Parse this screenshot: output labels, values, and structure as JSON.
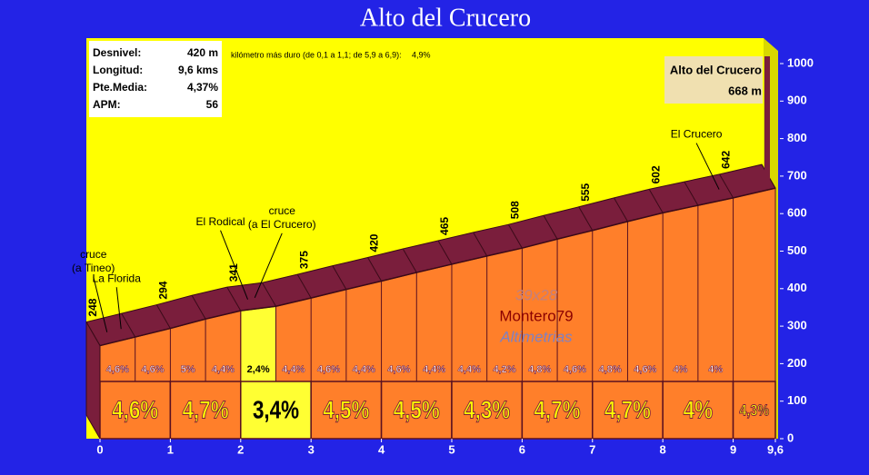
{
  "chart_data": {
    "type": "profile",
    "title": "Alto del Crucero",
    "stats": [
      {
        "label": "Desnivel:",
        "value": "420 m"
      },
      {
        "label": "Longitud:",
        "value": "9,6 kms"
      },
      {
        "label": "Pte.Media:",
        "value": "4,37%"
      },
      {
        "label": "APM:",
        "value": "56"
      }
    ],
    "note": {
      "text": "kilómetro más duro (de 0,1 a 1,1; de 5,9 a 6,9):",
      "value": "4,9%"
    },
    "summit": {
      "name": "Alto del Crucero",
      "value": 668,
      "label": "668 m"
    },
    "x": [
      0,
      0.5,
      1,
      1.5,
      2,
      2.5,
      3,
      3.5,
      4,
      4.5,
      5,
      5.5,
      6,
      6.5,
      7,
      7.5,
      8,
      8.5,
      9,
      9.6
    ],
    "series": [
      {
        "name": "altitude",
        "color": "#ff7f2a",
        "values": [
          248,
          271,
          294,
          319,
          341,
          353,
          375,
          398,
          420,
          443,
          465,
          487,
          508,
          532,
          555,
          579,
          602,
          622,
          642,
          668
        ]
      }
    ],
    "gradients": {
      "values": [
        4.6,
        4.6,
        5,
        4.4,
        2.4,
        4.4,
        4.6,
        4.4,
        4.6,
        4.4,
        4.4,
        4.2,
        4.8,
        4.6,
        4.8,
        4.6,
        4,
        4
      ],
      "value_labels": [
        "4,6%",
        "4,6%",
        "5%",
        "4,4%",
        "2,4%",
        "4,4%",
        "4,6%",
        "4,4%",
        "4,6%",
        "4,4%",
        "4,4%",
        "4,2%",
        "4,8%",
        "4,6%",
        "4,8%",
        "4,6%",
        "4%",
        "4%"
      ]
    },
    "km_gradients": {
      "values": [
        4.6,
        4.7,
        3.4,
        4.5,
        4.5,
        4.3,
        4.7,
        4.7,
        4,
        4.3
      ],
      "value_labels": [
        "4,6%",
        "4,7%",
        "3,4%",
        "4,5%",
        "4,5%",
        "4,3%",
        "4,7%",
        "4,7%",
        "4%",
        "4,3%"
      ]
    },
    "places": [
      {
        "lines": [
          "cruce",
          "(a Tineo)"
        ],
        "km": 0.1
      },
      {
        "lines": [
          "La Florida"
        ],
        "km": 0.3
      },
      {
        "lines": [
          "El Rodical"
        ],
        "km": 2.1
      },
      {
        "lines": [
          "cruce",
          "(a El Crucero)"
        ],
        "km": 2.2
      },
      {
        "lines": [
          "El Crucero"
        ],
        "km": 8.8
      }
    ],
    "watermark": [
      "39x28",
      "Montero79",
      "Altimetrias"
    ],
    "xlim": [
      0,
      9.6
    ],
    "xticks": [
      0,
      1,
      2,
      3,
      4,
      5,
      6,
      7,
      8,
      9,
      {
        "value": 9.6,
        "label": "9,6"
      }
    ],
    "ylim": [
      0,
      1000
    ],
    "yticks": [
      0,
      100,
      200,
      300,
      400,
      500,
      600,
      700,
      800,
      900,
      1000
    ],
    "colors": {
      "background": "#2323e6",
      "plot": "#ffff00",
      "top": "#7a1e3c",
      "highlight": "#ffff33"
    }
  }
}
